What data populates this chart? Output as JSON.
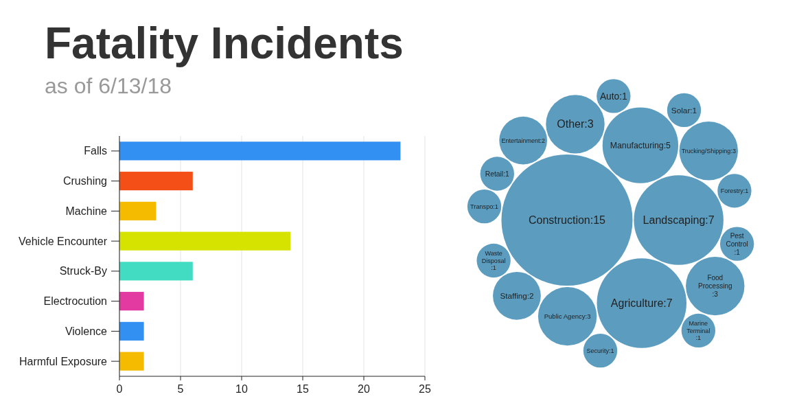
{
  "chart_data": [
    {
      "type": "bar",
      "title": "Fatality Incidents",
      "subtitle": "as of 6/13/18",
      "orientation": "horizontal",
      "categories": [
        "Falls",
        "Crushing",
        "Machine",
        "Vehicle Encounter",
        "Struck-By",
        "Electrocution",
        "Violence",
        "Harmful Exposure"
      ],
      "values": [
        23,
        6,
        3,
        14,
        6,
        2,
        2,
        2
      ],
      "colors": [
        "#3290f2",
        "#f44f17",
        "#f5bb00",
        "#d6e200",
        "#42dcc2",
        "#e23aa0",
        "#3290f2",
        "#f5bb00"
      ],
      "xlim": [
        0,
        25
      ],
      "xticks": [
        0,
        5,
        10,
        15,
        20,
        25
      ],
      "grid": "x"
    },
    {
      "type": "other",
      "color": "#5b9cbf",
      "categories": [
        "Other",
        "Auto",
        "Security",
        "Forestry",
        "Retail",
        "Landscaping",
        "Pest Control",
        "Construction",
        "Entertainment",
        "Staffing",
        "Solar",
        "Public Agency",
        "Manufacturing",
        "Waste Disposal",
        "Agriculture",
        "Marine Terminal",
        "Transpo",
        "Trucking/Shipping",
        "Food Processing"
      ],
      "values": [
        3,
        1,
        1,
        1,
        1,
        7,
        1,
        15,
        2,
        2,
        1,
        3,
        5,
        1,
        7,
        1,
        1,
        3,
        3
      ],
      "value_labels": [
        ":3",
        ":1",
        ":1",
        ":1",
        ":1",
        ":7",
        ":1",
        ":15",
        ":2",
        ":2",
        ":1",
        ":3",
        ":5",
        ":1",
        ":7",
        ":1",
        ":1",
        ":3",
        ":3"
      ]
    }
  ]
}
